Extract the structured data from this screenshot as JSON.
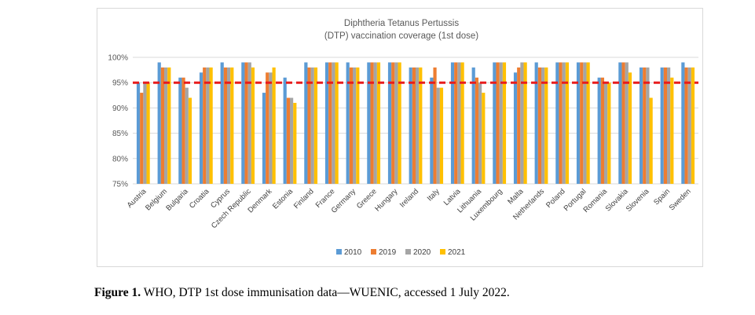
{
  "chart_data": {
    "type": "bar",
    "title": "Diphtheria Tetanus Pertussis",
    "subtitle": "(DTP) vaccination coverage (1st dose)",
    "xlabel": "",
    "ylabel": "",
    "ylim": [
      75,
      100
    ],
    "yticks": [
      "75%",
      "80%",
      "85%",
      "90%",
      "95%",
      "100%"
    ],
    "ytick_values": [
      75,
      80,
      85,
      90,
      95,
      100
    ],
    "grid": true,
    "legend_position": "bottom",
    "reference_line": {
      "value": 95,
      "color": "#e81c1c",
      "style": "dashed"
    },
    "categories": [
      "Austria",
      "Belgium",
      "Bulgaria",
      "Croatia",
      "Cyprus",
      "Czech Republic",
      "Denmark",
      "Estonia",
      "Finland",
      "France",
      "Germany",
      "Greece",
      "Hungary",
      "Ireland",
      "Italy",
      "Latvia",
      "Lithuania",
      "Luxembourg",
      "Malta",
      "Netherlands",
      "Poland",
      "Portugal",
      "Romania",
      "Slovakia",
      "Slovenia",
      "Spain",
      "Sweden"
    ],
    "series": [
      {
        "name": "2010",
        "color": "#5b9bd5",
        "values": [
          95,
          99,
          96,
          97,
          99,
          99,
          93,
          96,
          99,
          99,
          99,
          99,
          99,
          98,
          96,
          99,
          98,
          99,
          97,
          99,
          99,
          99,
          96,
          99,
          98,
          98,
          99
        ]
      },
      {
        "name": "2019",
        "color": "#ed7d31",
        "values": [
          93,
          98,
          96,
          98,
          98,
          99,
          97,
          92,
          98,
          99,
          98,
          99,
          99,
          98,
          98,
          99,
          96,
          99,
          98,
          98,
          99,
          99,
          96,
          99,
          98,
          98,
          98
        ]
      },
      {
        "name": "2020",
        "color": "#a5a5a5",
        "values": [
          95,
          98,
          94,
          98,
          98,
          99,
          97,
          92,
          98,
          99,
          98,
          99,
          99,
          98,
          94,
          99,
          95,
          99,
          99,
          98,
          99,
          99,
          95,
          99,
          98,
          98,
          98
        ]
      },
      {
        "name": "2021",
        "color": "#ffc000",
        "values": [
          95,
          98,
          92,
          98,
          98,
          98,
          98,
          91,
          98,
          99,
          98,
          99,
          99,
          98,
          94,
          99,
          93,
          99,
          99,
          98,
          99,
          99,
          95,
          97,
          92,
          96,
          98
        ]
      }
    ]
  },
  "caption": {
    "label": "Figure 1.",
    "text": " WHO, DTP 1st dose immunisation data—WUENIC, accessed 1 July 2022."
  }
}
